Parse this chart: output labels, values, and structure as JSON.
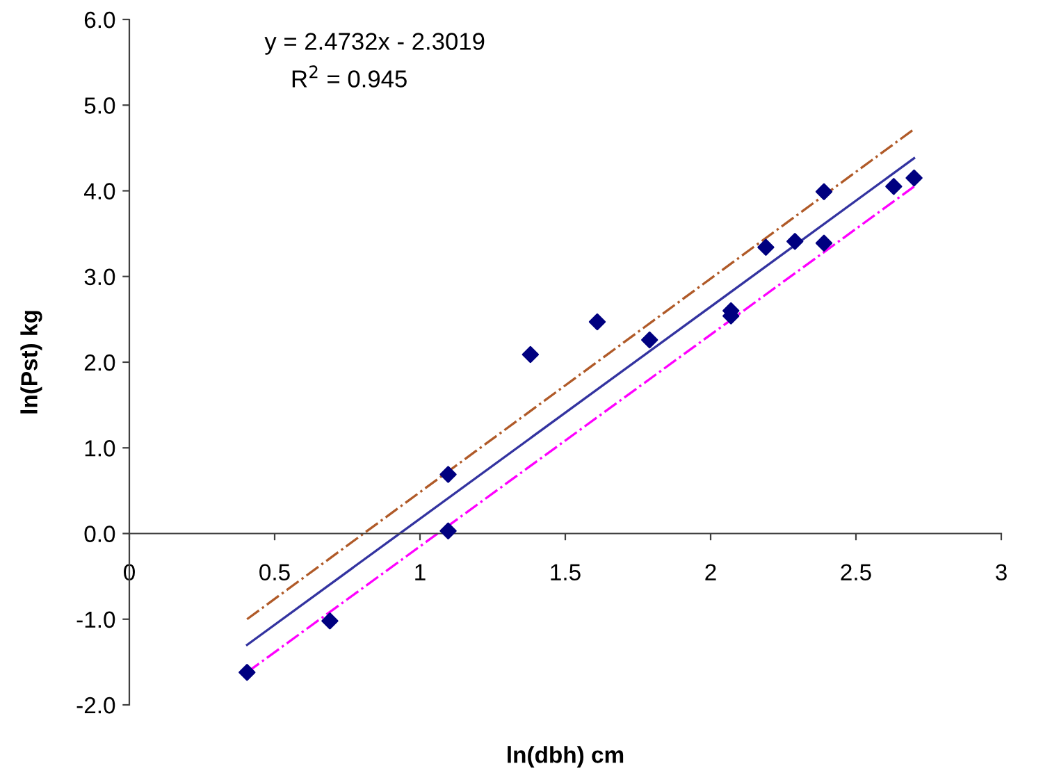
{
  "chart_data": {
    "type": "scatter",
    "xlabel": "ln(dbh) cm",
    "ylabel": "ln(Pst) kg",
    "annotations": [
      "y = 2.4732x - 2.3019",
      "R$^{2}$ = 0.945"
    ],
    "series": [
      {
        "color": "#000080",
        "marker": "diamond",
        "x": [
          0.405,
          0.69,
          1.097,
          1.097,
          1.38,
          1.61,
          1.79,
          2.07,
          2.07,
          2.19,
          2.29,
          2.39,
          2.39,
          2.63,
          2.7
        ],
        "values": [
          -1.62,
          -1.02,
          0.69,
          0.03,
          2.09,
          2.47,
          2.26,
          2.6,
          2.54,
          3.34,
          3.41,
          3.99,
          3.39,
          4.05,
          4.15
        ]
      },
      {
        "type": "line",
        "color": "#3333a0",
        "line_style": "solid",
        "x": [
          0.405,
          2.7
        ],
        "values": [
          -1.3,
          4.38
        ]
      },
      {
        "type": "line",
        "color": "#b05a28",
        "line_style": "dashdot",
        "x": [
          0.405,
          2.7
        ],
        "values": [
          -1.0,
          4.72
        ]
      },
      {
        "type": "line",
        "color": "#ff00ff",
        "line_style": "dashdot",
        "x": [
          0.405,
          2.7
        ],
        "values": [
          -1.62,
          4.05
        ]
      }
    ],
    "xlim": [
      0,
      3
    ],
    "ylim": [
      -2,
      6
    ],
    "xticks": [
      0,
      0.5,
      1,
      1.5,
      2,
      2.5,
      3
    ],
    "yticks": [
      {
        "value": -2,
        "label": "-2.0"
      },
      {
        "value": -1,
        "label": "-1.0"
      },
      {
        "value": 0,
        "label": "0.0"
      },
      {
        "value": 1,
        "label": "1.0"
      },
      {
        "value": 2,
        "label": "2.0"
      },
      {
        "value": 3,
        "label": "3.0"
      },
      {
        "value": 4,
        "label": "4.0"
      },
      {
        "value": 5,
        "label": "5.0"
      },
      {
        "value": 6,
        "label": "6.0"
      }
    ],
    "grid": false,
    "legend": false
  }
}
